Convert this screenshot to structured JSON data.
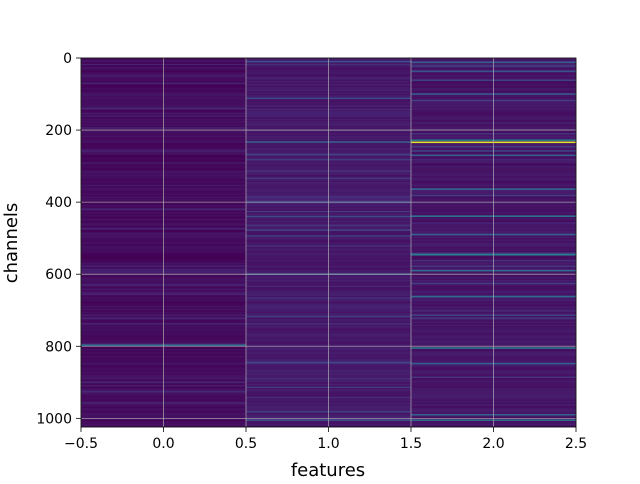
{
  "chart_data": {
    "type": "heatmap",
    "title": "",
    "xlabel": "features",
    "ylabel": "channels",
    "xlim": [
      -0.5,
      2.5
    ],
    "ylim": [
      1024,
      0
    ],
    "y_inverted": true,
    "grid": true,
    "colormap": "viridis",
    "x_ticks": [
      {
        "value": -0.5,
        "label": "−0.5"
      },
      {
        "value": 0.0,
        "label": "0.0"
      },
      {
        "value": 0.5,
        "label": "0.5"
      },
      {
        "value": 1.0,
        "label": "1.0"
      },
      {
        "value": 1.5,
        "label": "1.5"
      },
      {
        "value": 2.0,
        "label": "2.0"
      },
      {
        "value": 2.5,
        "label": "2.5"
      }
    ],
    "y_ticks": [
      {
        "value": 0,
        "label": "0"
      },
      {
        "value": 200,
        "label": "200"
      },
      {
        "value": 400,
        "label": "400"
      },
      {
        "value": 600,
        "label": "600"
      },
      {
        "value": 800,
        "label": "800"
      },
      {
        "value": 1000,
        "label": "1000"
      }
    ],
    "features": [
      0,
      1,
      2
    ],
    "channels": 1024,
    "background_levels": [
      0.03,
      0.07,
      0.06
    ],
    "highlights": [
      {
        "feature": 0,
        "channel": 797,
        "value": 0.35
      },
      {
        "feature": 0,
        "channel": 140,
        "value": 0.12
      },
      {
        "feature": 0,
        "channel": 420,
        "value": 0.1
      },
      {
        "feature": 0,
        "channel": 655,
        "value": 0.1
      },
      {
        "feature": 0,
        "channel": 900,
        "value": 0.1
      },
      {
        "feature": 1,
        "channel": 10,
        "value": 0.25
      },
      {
        "feature": 1,
        "channel": 112,
        "value": 0.22
      },
      {
        "feature": 1,
        "channel": 233,
        "value": 0.3
      },
      {
        "feature": 1,
        "channel": 268,
        "value": 0.2
      },
      {
        "feature": 1,
        "channel": 440,
        "value": 0.22
      },
      {
        "feature": 1,
        "channel": 600,
        "value": 0.28
      },
      {
        "feature": 1,
        "channel": 845,
        "value": 0.22
      },
      {
        "feature": 1,
        "channel": 1005,
        "value": 0.25
      },
      {
        "feature": 2,
        "channel": 12,
        "value": 0.3
      },
      {
        "feature": 2,
        "channel": 37,
        "value": 0.25
      },
      {
        "feature": 2,
        "channel": 100,
        "value": 0.28
      },
      {
        "feature": 2,
        "channel": 228,
        "value": 0.4
      },
      {
        "feature": 2,
        "channel": 234,
        "value": 0.95
      },
      {
        "feature": 2,
        "channel": 270,
        "value": 0.3
      },
      {
        "feature": 2,
        "channel": 364,
        "value": 0.32
      },
      {
        "feature": 2,
        "channel": 439,
        "value": 0.38
      },
      {
        "feature": 2,
        "channel": 490,
        "value": 0.32
      },
      {
        "feature": 2,
        "channel": 546,
        "value": 0.42
      },
      {
        "feature": 2,
        "channel": 590,
        "value": 0.35
      },
      {
        "feature": 2,
        "channel": 662,
        "value": 0.35
      },
      {
        "feature": 2,
        "channel": 805,
        "value": 0.4
      },
      {
        "feature": 2,
        "channel": 848,
        "value": 0.3
      },
      {
        "feature": 2,
        "channel": 990,
        "value": 0.3
      },
      {
        "feature": 2,
        "channel": 1005,
        "value": 0.35
      }
    ]
  }
}
